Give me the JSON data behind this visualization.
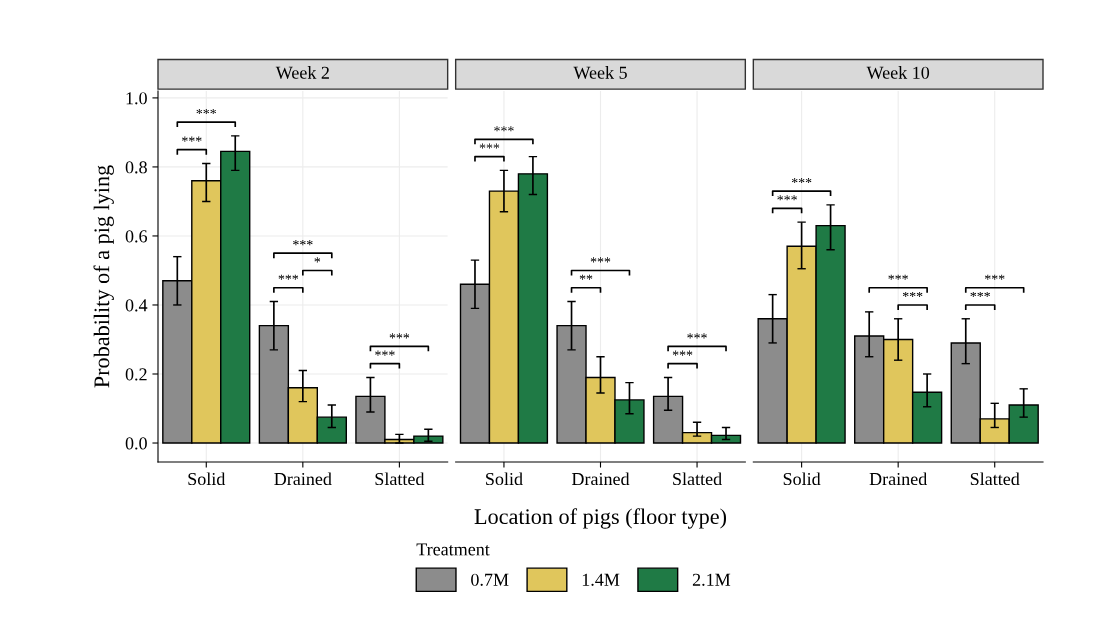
{
  "chart_data": [
    {
      "type": "bar",
      "title": "Week 2",
      "ylabel": "Probability of a pig lying",
      "legend_title": "Treatment",
      "legend": "bottom",
      "categories": [
        "Solid",
        "Drained",
        "Slatted"
      ],
      "ylim": [
        -0.055,
        1.02
      ],
      "yticks": [
        {
          "value": 0,
          "label": "0.0"
        },
        0.2,
        0.4,
        0.6,
        0.8,
        {
          "value": 1,
          "label": "1.0"
        }
      ],
      "grid": true,
      "series": [
        {
          "name": "0.7M",
          "color": "#8c8c8c",
          "values": [
            0.47,
            0.34,
            0.135
          ],
          "errors": [
            [
              0.4,
              0.54
            ],
            [
              0.27,
              0.41
            ],
            [
              0.09,
              0.19
            ]
          ]
        },
        {
          "name": "1.4M",
          "color": "#e0c65c",
          "values": [
            0.76,
            0.16,
            0.01
          ],
          "errors": [
            [
              0.7,
              0.81
            ],
            [
              0.12,
              0.21
            ],
            [
              0.0,
              0.025
            ]
          ]
        },
        {
          "name": "2.1M",
          "color": "#1f7a45",
          "values": [
            0.845,
            0.075,
            0.02
          ],
          "errors": [
            [
              0.79,
              0.89
            ],
            [
              0.045,
              0.11
            ],
            [
              0.005,
              0.04
            ]
          ]
        }
      ],
      "annotations": [
        "***",
        "***",
        "***",
        "***",
        "*",
        "***",
        "***"
      ]
    },
    {
      "type": "bar",
      "title": "Week 5",
      "xlabel": "Location of pigs (floor type)",
      "tick_labels": "x",
      "categories": [
        "Solid",
        "Drained",
        "Slatted"
      ],
      "ylim": [
        -0.055,
        1.02
      ],
      "grid": true,
      "series": [
        {
          "color": "#8c8c8c",
          "values": [
            0.46,
            0.34,
            0.135
          ],
          "errors": [
            [
              0.39,
              0.53
            ],
            [
              0.27,
              0.41
            ],
            [
              0.095,
              0.19
            ]
          ]
        },
        {
          "color": "#e0c65c",
          "values": [
            0.73,
            0.19,
            0.03
          ],
          "errors": [
            [
              0.67,
              0.79
            ],
            [
              0.145,
              0.25
            ],
            [
              0.02,
              0.06
            ]
          ]
        },
        {
          "color": "#1f7a45",
          "values": [
            0.78,
            0.125,
            0.022
          ],
          "errors": [
            [
              0.72,
              0.83
            ],
            [
              0.085,
              0.175
            ],
            [
              0.01,
              0.045
            ]
          ]
        }
      ],
      "annotations": [
        "***",
        "***",
        "***",
        "**",
        "***",
        "***"
      ]
    },
    {
      "type": "bar",
      "title": "Week 10",
      "tick_labels": "x",
      "categories": [
        "Solid",
        "Drained",
        "Slatted"
      ],
      "ylim": [
        -0.055,
        1.02
      ],
      "grid": true,
      "series": [
        {
          "color": "#8c8c8c",
          "values": [
            0.36,
            0.31,
            0.29
          ],
          "errors": [
            [
              0.29,
              0.43
            ],
            [
              0.25,
              0.38
            ],
            [
              0.23,
              0.36
            ]
          ]
        },
        {
          "color": "#e0c65c",
          "values": [
            0.57,
            0.3,
            0.07
          ],
          "errors": [
            [
              0.505,
              0.64
            ],
            [
              0.24,
              0.36
            ],
            [
              0.045,
              0.115
            ]
          ]
        },
        {
          "color": "#1f7a45",
          "values": [
            0.63,
            0.147,
            0.11
          ],
          "errors": [
            [
              0.56,
              0.69
            ],
            [
              0.105,
              0.2
            ],
            [
              0.075,
              0.157
            ]
          ]
        }
      ],
      "annotations": [
        "***",
        "***",
        "***",
        "***",
        "***",
        "***"
      ]
    }
  ]
}
